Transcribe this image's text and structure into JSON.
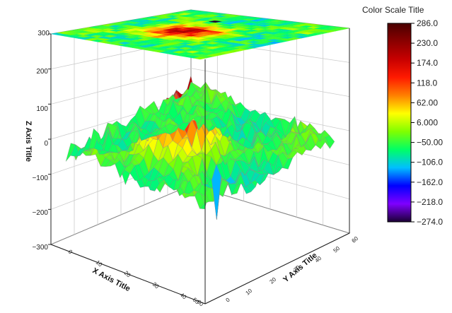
{
  "chart_data": {
    "type": "surface3d",
    "title": "",
    "axes": {
      "x": {
        "label": "X Axis Title",
        "range": [
          0,
          60
        ],
        "ticks": [
          "0",
          "10",
          "20",
          "30",
          "40",
          "50",
          "60"
        ]
      },
      "y": {
        "label": "Y Axis Title",
        "range": [
          0,
          60
        ],
        "ticks": [
          "0",
          "10",
          "20",
          "30",
          "40",
          "50",
          "60"
        ]
      },
      "z": {
        "label": "Z Axis Title",
        "range": [
          -300,
          300
        ],
        "ticks": [
          "300",
          "200",
          "100",
          "0",
          "−100",
          "−200",
          "−300"
        ]
      }
    },
    "grid": true,
    "projection": "top-plane color map",
    "color_scale": {
      "title": "Color Scale Title",
      "position": "right",
      "labels": [
        "286.0",
        "230.0",
        "174.0",
        "118.0",
        "62.00",
        "6.000",
        "−50.00",
        "−106.0",
        "−162.0",
        "−218.0",
        "−274.0"
      ],
      "values": [
        286,
        230,
        174,
        118,
        62,
        6,
        -50,
        -106,
        -162,
        -218,
        -274
      ],
      "colors": [
        "#4a0000",
        "#8b0000",
        "#c80000",
        "#ff1a00",
        "#ff8000",
        "#ffff00",
        "#7fff00",
        "#00ff66",
        "#00bfff",
        "#0000ff",
        "#7f00ff",
        "#1a0033"
      ]
    },
    "surface": {
      "extrema": {
        "max": 286,
        "min": -274
      },
      "features": "central peak region reaching about 286 near the middle, surface mostly between -100 and 100, isolated spikes down to about -274 near the front edge"
    }
  }
}
